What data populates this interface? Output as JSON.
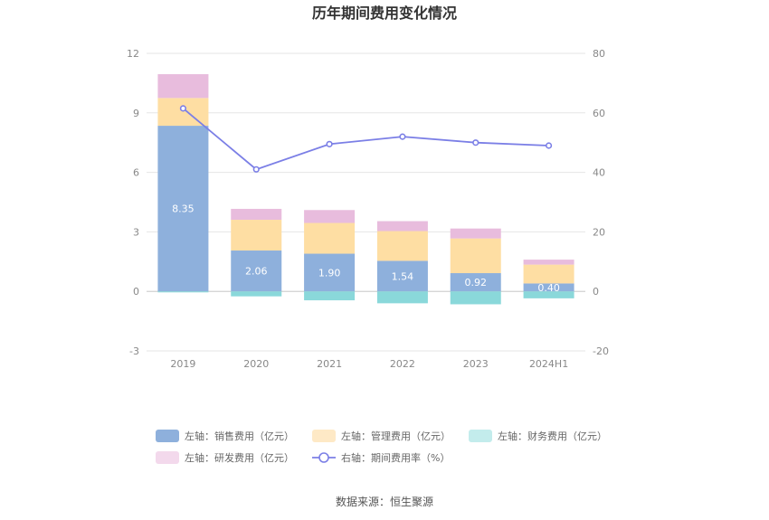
{
  "chart_data": {
    "type": "bar",
    "title": "历年期间费用变化情况",
    "categories": [
      "2019",
      "2020",
      "2021",
      "2022",
      "2023",
      "2024H1"
    ],
    "left_axis": {
      "ylim": [
        -3,
        12
      ],
      "ticks": [
        "-3",
        "0",
        "3",
        "6",
        "9",
        "12"
      ]
    },
    "right_axis": {
      "ylim": [
        -20,
        80
      ],
      "ticks": [
        "-20",
        "0",
        "20",
        "40",
        "60",
        "80"
      ]
    },
    "series": [
      {
        "name": "左轴：销售费用（亿元）",
        "axis": "left",
        "type": "bar",
        "values": [
          8.35,
          2.06,
          1.9,
          1.54,
          0.92,
          0.4
        ],
        "labels": [
          "8.35",
          "2.06",
          "1.90",
          "1.54",
          "0.92",
          "0.40"
        ],
        "color": "#8eb0dc"
      },
      {
        "name": "左轴：管理费用（亿元）",
        "axis": "left",
        "type": "bar",
        "values": [
          1.4,
          1.55,
          1.55,
          1.5,
          1.75,
          0.95
        ],
        "color": "#fedea3"
      },
      {
        "name": "左轴：财务费用（亿元）",
        "axis": "left",
        "type": "bar",
        "values": [
          -0.05,
          -0.25,
          -0.45,
          -0.6,
          -0.65,
          -0.35
        ],
        "color": "#8ad8da"
      },
      {
        "name": "左轴：研发费用（亿元）",
        "axis": "left",
        "type": "bar",
        "values": [
          1.2,
          0.55,
          0.65,
          0.5,
          0.5,
          0.25
        ],
        "color": "#e8bcdd"
      },
      {
        "name": "右轴：期间费用率（%）",
        "axis": "right",
        "type": "line",
        "values": [
          61.5,
          41.0,
          49.5,
          52.0,
          50.0,
          49.0
        ],
        "color": "#7b7fe6"
      }
    ],
    "legend_placement": "bottom",
    "grid": true,
    "legend_colors": [
      "#8eb0dc",
      "#fee9c6",
      "#c3ecec",
      "#f3d9ec",
      "#7b7fe6"
    ]
  },
  "source": "数据来源：恒生聚源"
}
